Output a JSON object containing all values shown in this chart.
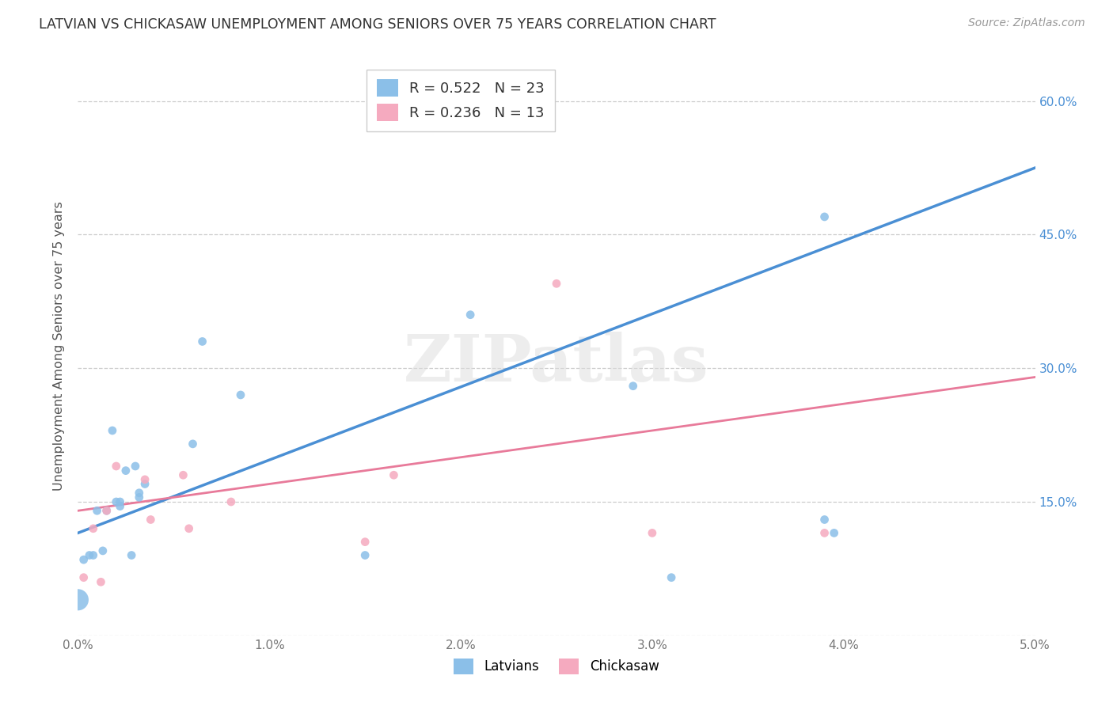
{
  "title": "LATVIAN VS CHICKASAW UNEMPLOYMENT AMONG SENIORS OVER 75 YEARS CORRELATION CHART",
  "source": "Source: ZipAtlas.com",
  "ylabel": "Unemployment Among Seniors over 75 years",
  "xlim": [
    0.0,
    0.05
  ],
  "ylim": [
    0.0,
    0.65
  ],
  "xticks": [
    0.0,
    0.01,
    0.02,
    0.03,
    0.04,
    0.05
  ],
  "xticklabels": [
    "0.0%",
    "1.0%",
    "2.0%",
    "3.0%",
    "4.0%",
    "5.0%"
  ],
  "yticks": [
    0.0,
    0.15,
    0.3,
    0.45,
    0.6
  ],
  "yticklabels_right": [
    "",
    "15.0%",
    "30.0%",
    "45.0%",
    "60.0%"
  ],
  "latvian_color": "#8BBFE8",
  "chickasaw_color": "#F5AABF",
  "latvian_line_color": "#4A8FD4",
  "chickasaw_line_color": "#E87A9A",
  "background_color": "#FFFFFF",
  "watermark": "ZIPatlas",
  "latvians_label": "Latvians",
  "chickasaw_label": "Chickasaw",
  "lv_line_x0": 0.0,
  "lv_line_x1": 0.05,
  "lv_line_y0": 0.115,
  "lv_line_y1": 0.525,
  "ck_line_x0": 0.0,
  "ck_line_x1": 0.05,
  "ck_line_y0": 0.14,
  "ck_line_y1": 0.29,
  "latvian_x": [
    0.0,
    0.0003,
    0.0006,
    0.0008,
    0.001,
    0.0013,
    0.0015,
    0.0018,
    0.002,
    0.0022,
    0.0022,
    0.0025,
    0.0028,
    0.003,
    0.0032,
    0.0032,
    0.0035,
    0.006,
    0.0065,
    0.0085,
    0.015,
    0.0205,
    0.029,
    0.031,
    0.039,
    0.039,
    0.0395
  ],
  "latvian_y": [
    0.04,
    0.085,
    0.09,
    0.09,
    0.14,
    0.095,
    0.14,
    0.23,
    0.15,
    0.15,
    0.145,
    0.185,
    0.09,
    0.19,
    0.155,
    0.16,
    0.17,
    0.215,
    0.33,
    0.27,
    0.09,
    0.36,
    0.28,
    0.065,
    0.47,
    0.13,
    0.115
  ],
  "latvian_sizes": [
    380,
    60,
    60,
    60,
    60,
    60,
    60,
    60,
    60,
    60,
    60,
    60,
    60,
    60,
    60,
    60,
    60,
    60,
    60,
    60,
    60,
    60,
    60,
    60,
    60,
    60,
    60
  ],
  "chickasaw_x": [
    0.0003,
    0.0008,
    0.0012,
    0.0015,
    0.002,
    0.0035,
    0.0038,
    0.0055,
    0.0058,
    0.008,
    0.015,
    0.0165,
    0.025,
    0.03,
    0.039
  ],
  "chickasaw_y": [
    0.065,
    0.12,
    0.06,
    0.14,
    0.19,
    0.175,
    0.13,
    0.18,
    0.12,
    0.15,
    0.105,
    0.18,
    0.395,
    0.115,
    0.115
  ],
  "chickasaw_sizes": [
    60,
    60,
    60,
    60,
    60,
    60,
    60,
    60,
    60,
    60,
    60,
    60,
    60,
    60,
    60
  ]
}
